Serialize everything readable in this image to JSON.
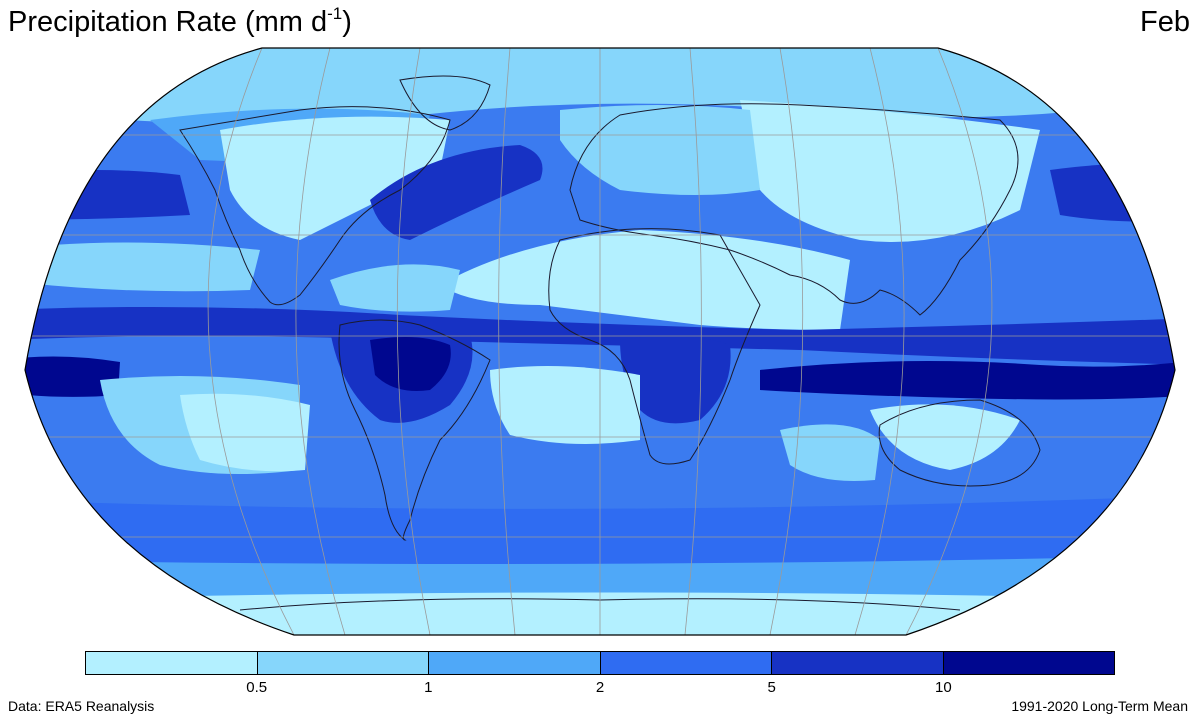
{
  "header": {
    "title": "Precipitation Rate (mm d",
    "title_superscript": "-1",
    "title_close": ")",
    "month": "Feb"
  },
  "map": {
    "projection": "Robinson",
    "ocean_base_color": "#3b7bf0",
    "land_base_color": "#b3f0ff",
    "coastline_color": "#1a1a2e",
    "gridline_color": "#9a9a9a"
  },
  "legend": {
    "thresholds": [
      "0.5",
      "1",
      "2",
      "5",
      "10"
    ],
    "bins": [
      {
        "range": "< 0.5",
        "color": "#b3f0ff"
      },
      {
        "range": "0.5 - 1",
        "color": "#86d6fb"
      },
      {
        "range": "1 - 2",
        "color": "#4fa8f8"
      },
      {
        "range": "2 - 5",
        "color": "#2f6cf2"
      },
      {
        "range": "5 - 10",
        "color": "#1732c4"
      },
      {
        "range": "> 10",
        "color": "#00078f"
      }
    ]
  },
  "footer": {
    "source": "Data: ERA5 Reanalysis",
    "period": "1991-2020 Long-Term Mean"
  }
}
